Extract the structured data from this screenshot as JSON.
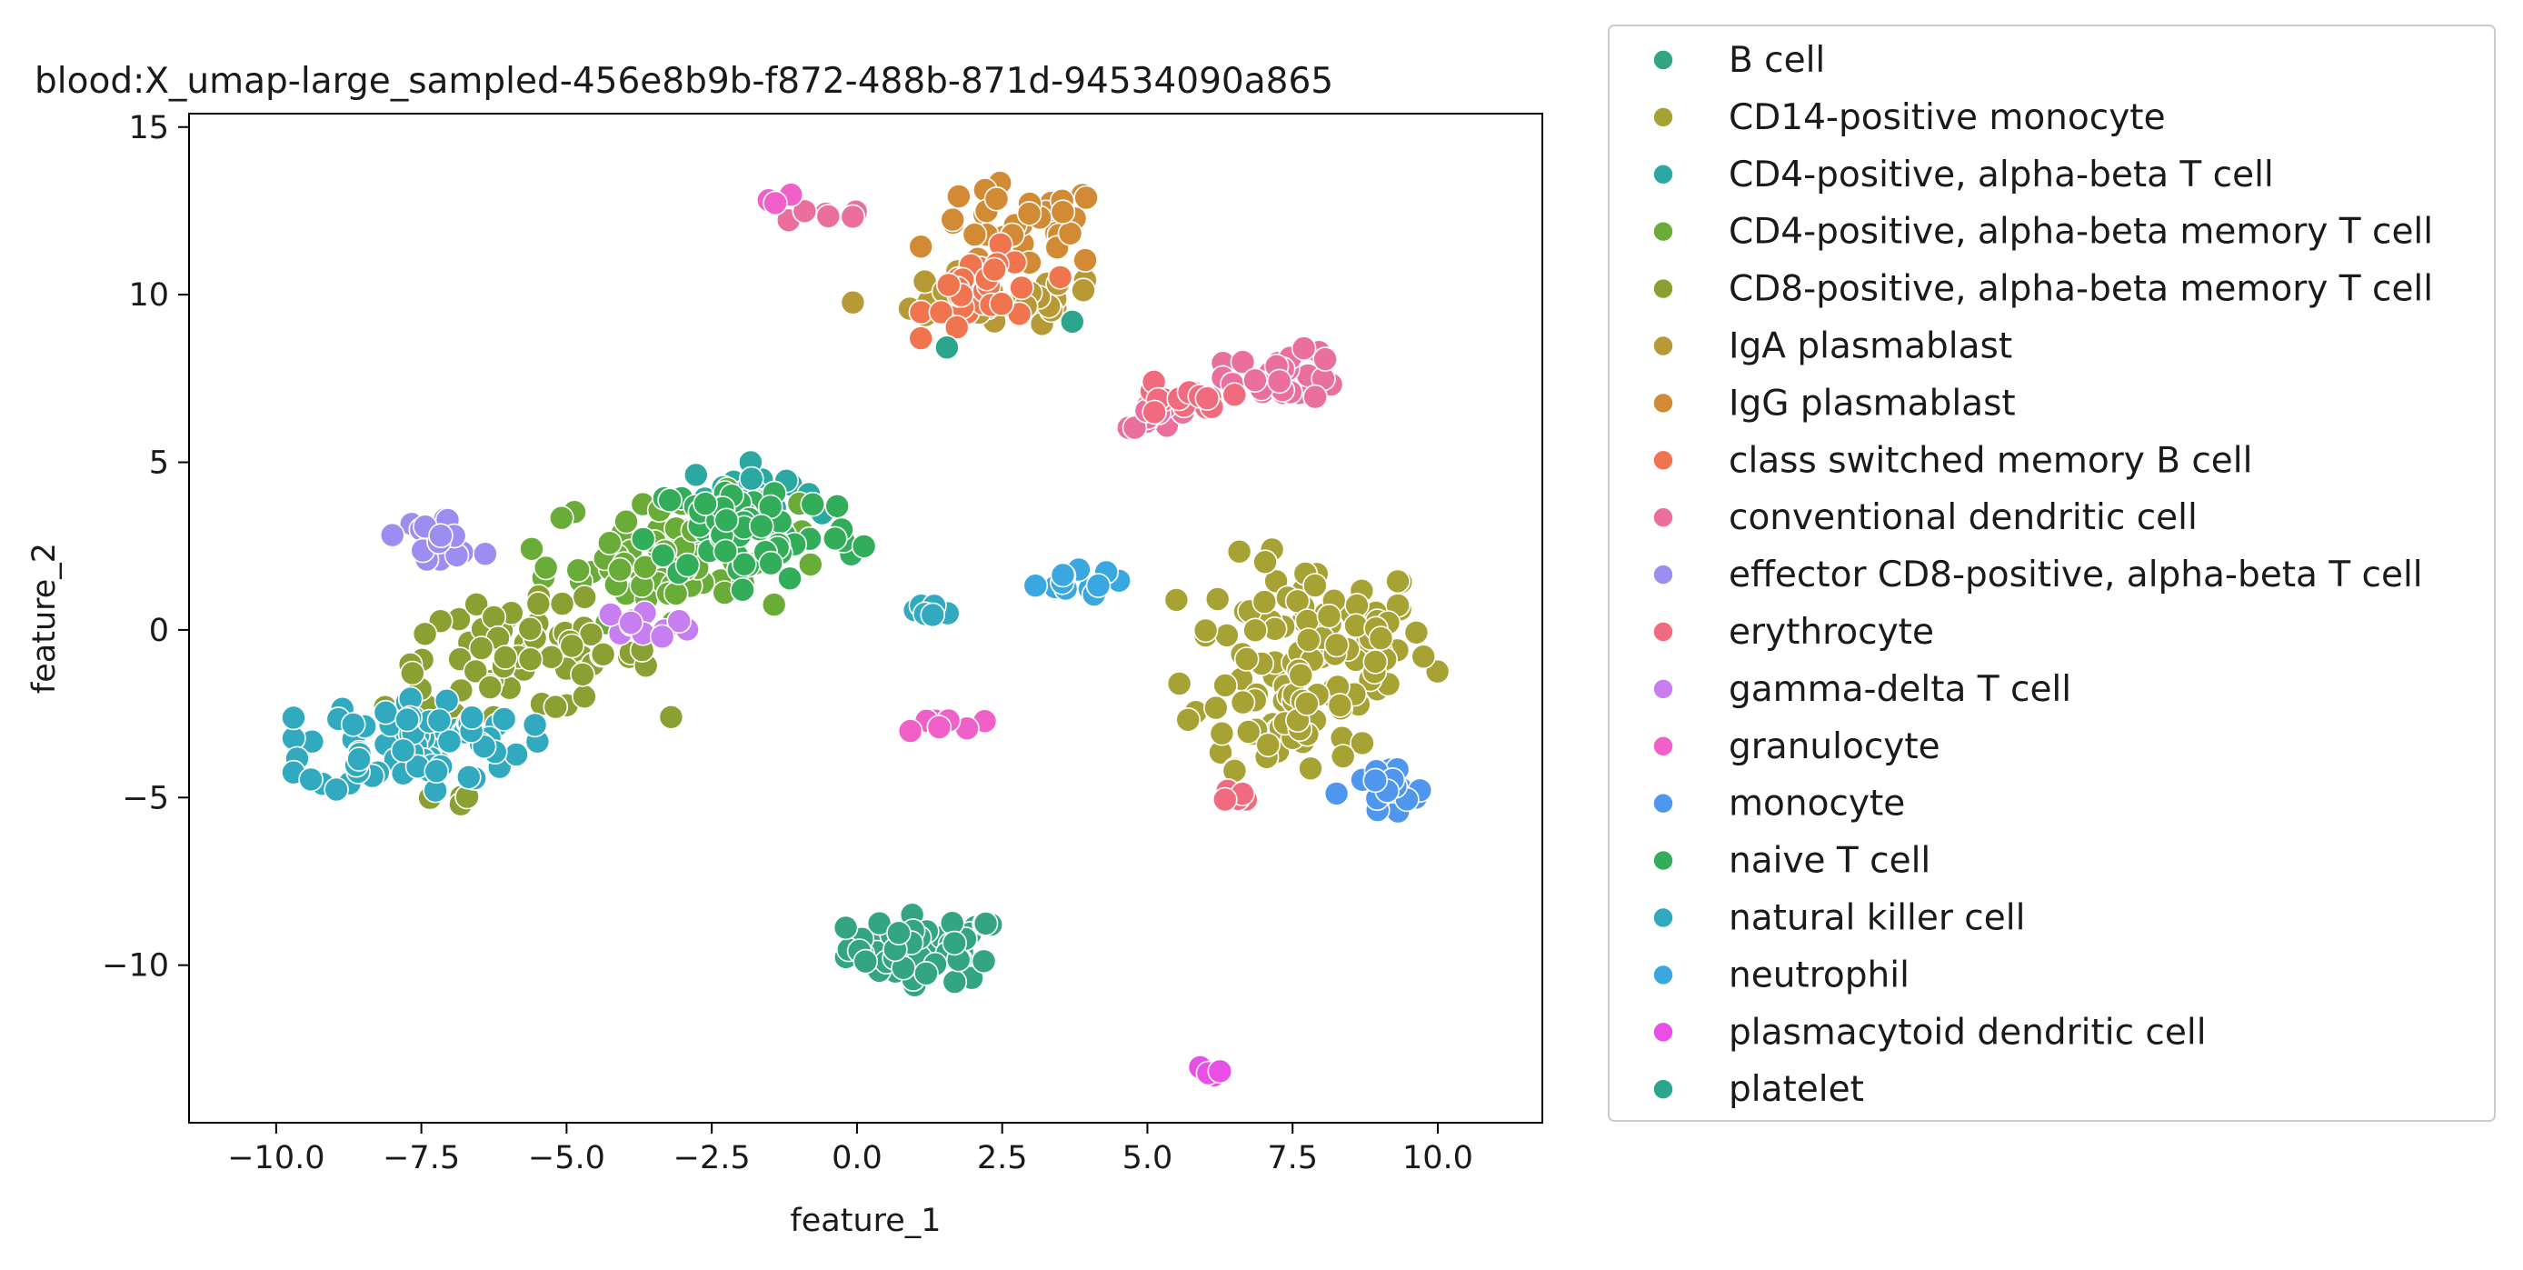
{
  "chart_data": {
    "type": "scatter",
    "title": "blood:X_umap-large_sampled-456e8b9b-f872-488b-871d-94534090a865",
    "xlabel": "feature_1",
    "ylabel": "feature_2",
    "xlim": [
      -11.5,
      11.8
    ],
    "ylim": [
      -14.7,
      15.4
    ],
    "xticks": [
      -10.0,
      -7.5,
      -5.0,
      -2.5,
      0.0,
      2.5,
      5.0,
      7.5,
      10.0
    ],
    "xtick_labels": [
      "−10.0",
      "−7.5",
      "−5.0",
      "−2.5",
      "0.0",
      "2.5",
      "5.0",
      "7.5",
      "10.0"
    ],
    "yticks": [
      -10,
      -5,
      0,
      5,
      10,
      15
    ],
    "ytick_labels": [
      "−10",
      "−5",
      "0",
      "5",
      "10",
      "15"
    ],
    "grid": false,
    "legend_position": "right, outside axes",
    "series": [
      {
        "name": "B cell",
        "color": "#33a583",
        "clusters": [
          {
            "cx": 1.2,
            "cy": -9.5,
            "rx": 1.5,
            "ry": 1.1,
            "n": 60
          }
        ]
      },
      {
        "name": "CD14-positive monocyte",
        "color": "#a7a234",
        "clusters": [
          {
            "cx": 7.8,
            "cy": -0.5,
            "rx": 2.3,
            "ry": 2.9,
            "n": 110
          },
          {
            "cx": 7.2,
            "cy": -3.2,
            "rx": 1.5,
            "ry": 1.0,
            "n": 25
          }
        ]
      },
      {
        "name": "CD4-positive, alpha-beta T cell",
        "color": "#2ba8a2",
        "clusters": [
          {
            "cx": -1.8,
            "cy": 4.2,
            "rx": 1.2,
            "ry": 0.8,
            "n": 20
          }
        ]
      },
      {
        "name": "CD4-positive, alpha-beta memory T cell",
        "color": "#6aac38",
        "clusters": [
          {
            "cx": -3.2,
            "cy": 2.2,
            "rx": 2.4,
            "ry": 2.0,
            "n": 70
          }
        ]
      },
      {
        "name": "CD8-positive, alpha-beta memory T cell",
        "color": "#8ba032",
        "clusters": [
          {
            "cx": -5.8,
            "cy": -0.8,
            "rx": 2.6,
            "ry": 1.8,
            "n": 70
          },
          {
            "cx": -6.8,
            "cy": -5.0,
            "rx": 0.6,
            "ry": 0.4,
            "n": 4
          }
        ]
      },
      {
        "name": "IgA plasmablast",
        "color": "#b79a35",
        "clusters": [
          {
            "cx": 2.2,
            "cy": 9.8,
            "rx": 2.4,
            "ry": 0.9,
            "n": 40
          }
        ]
      },
      {
        "name": "IgG plasmablast",
        "color": "#d28a35",
        "clusters": [
          {
            "cx": 2.8,
            "cy": 12.0,
            "rx": 1.7,
            "ry": 1.4,
            "n": 35
          }
        ]
      },
      {
        "name": "class switched memory B cell",
        "color": "#f0744e",
        "clusters": [
          {
            "cx": 2.3,
            "cy": 10.1,
            "rx": 1.2,
            "ry": 1.4,
            "n": 30
          }
        ]
      },
      {
        "name": "conventional dendritic cell",
        "color": "#ea6f9d",
        "clusters": [
          {
            "cx": 7.4,
            "cy": 7.6,
            "rx": 1.1,
            "ry": 0.8,
            "n": 30
          },
          {
            "cx": 5.2,
            "cy": 6.4,
            "rx": 0.7,
            "ry": 0.4,
            "n": 12
          },
          {
            "cx": -0.6,
            "cy": 12.4,
            "rx": 0.9,
            "ry": 0.3,
            "n": 6
          }
        ]
      },
      {
        "name": "effector CD8-positive, alpha-beta T cell",
        "color": "#9b8ef0",
        "clusters": [
          {
            "cx": -7.2,
            "cy": 2.8,
            "rx": 0.8,
            "ry": 0.7,
            "n": 20
          }
        ]
      },
      {
        "name": "erythrocyte",
        "color": "#f06b7d",
        "clusters": [
          {
            "cx": 5.5,
            "cy": 6.8,
            "rx": 1.0,
            "ry": 0.6,
            "n": 15
          },
          {
            "cx": 6.5,
            "cy": -5.0,
            "rx": 0.5,
            "ry": 0.3,
            "n": 6
          }
        ]
      },
      {
        "name": "gamma-delta T cell",
        "color": "#c77ef0",
        "clusters": [
          {
            "cx": -3.6,
            "cy": 0.2,
            "rx": 0.9,
            "ry": 0.4,
            "n": 10
          }
        ]
      },
      {
        "name": "granulocyte",
        "color": "#f060c8",
        "clusters": [
          {
            "cx": 1.3,
            "cy": -2.8,
            "rx": 0.9,
            "ry": 0.4,
            "n": 8
          },
          {
            "cx": -1.5,
            "cy": 12.8,
            "rx": 0.4,
            "ry": 0.2,
            "n": 3
          }
        ]
      },
      {
        "name": "monocyte",
        "color": "#4f97ee",
        "clusters": [
          {
            "cx": 9.1,
            "cy": -4.9,
            "rx": 0.9,
            "ry": 1.0,
            "n": 20
          }
        ]
      },
      {
        "name": "naive T cell",
        "color": "#32ad59",
        "clusters": [
          {
            "cx": -1.8,
            "cy": 3.0,
            "rx": 2.0,
            "ry": 1.8,
            "n": 70
          }
        ]
      },
      {
        "name": "natural killer cell",
        "color": "#31aac0",
        "clusters": [
          {
            "cx": -7.6,
            "cy": -3.4,
            "rx": 2.1,
            "ry": 1.6,
            "n": 80
          },
          {
            "cx": 1.2,
            "cy": 0.6,
            "rx": 0.7,
            "ry": 0.4,
            "n": 8
          }
        ]
      },
      {
        "name": "neutrophil",
        "color": "#3aa7e0",
        "clusters": [
          {
            "cx": 3.5,
            "cy": 1.4,
            "rx": 1.1,
            "ry": 0.4,
            "n": 12
          }
        ]
      },
      {
        "name": "plasmacytoid dendritic cell",
        "color": "#e94ee6",
        "clusters": [
          {
            "cx": 6.0,
            "cy": -13.2,
            "rx": 0.25,
            "ry": 0.2,
            "n": 4
          }
        ]
      },
      {
        "name": "platelet",
        "color": "#2ba58b",
        "clusters": [
          {
            "cx": 1.5,
            "cy": 8.4,
            "rx": 0.1,
            "ry": 0.1,
            "n": 1
          },
          {
            "cx": 3.7,
            "cy": 9.2,
            "rx": 0.1,
            "ry": 0.1,
            "n": 1
          }
        ]
      }
    ]
  }
}
